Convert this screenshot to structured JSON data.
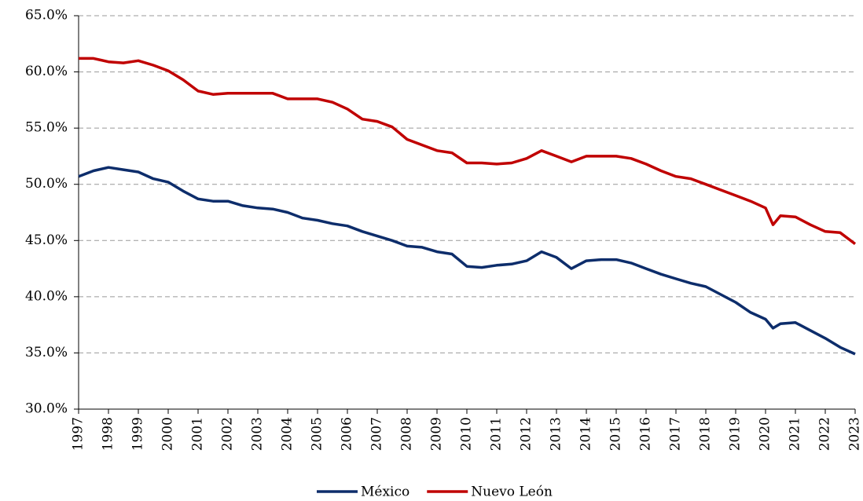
{
  "chart_data": {
    "type": "line",
    "x": [
      1997,
      1997.5,
      1998,
      1998.5,
      1999,
      1999.5,
      2000,
      2000.5,
      2001,
      2001.5,
      2002,
      2002.5,
      2003,
      2003.5,
      2004,
      2004.5,
      2005,
      2005.5,
      2006,
      2006.5,
      2007,
      2007.5,
      2008,
      2008.5,
      2009,
      2009.5,
      2010,
      2010.5,
      2011,
      2011.5,
      2012,
      2012.5,
      2013,
      2013.5,
      2014,
      2014.5,
      2015,
      2015.5,
      2016,
      2016.5,
      2017,
      2017.5,
      2018,
      2018.5,
      2019,
      2019.5,
      2020,
      2020.25,
      2020.5,
      2021,
      2021.5,
      2022,
      2022.5,
      2023
    ],
    "series": [
      {
        "name": "México",
        "color": "#0d2d6b",
        "values": [
          50.7,
          51.2,
          51.5,
          51.3,
          51.1,
          50.5,
          50.2,
          49.4,
          48.7,
          48.5,
          48.5,
          48.1,
          47.9,
          47.8,
          47.5,
          47.0,
          46.8,
          46.5,
          46.3,
          45.8,
          45.4,
          45.0,
          44.5,
          44.4,
          44.0,
          43.8,
          42.7,
          42.6,
          42.8,
          42.9,
          43.2,
          44.0,
          43.5,
          42.5,
          43.2,
          43.3,
          43.3,
          43.0,
          42.5,
          42.0,
          41.6,
          41.2,
          40.9,
          40.2,
          39.5,
          38.6,
          38.0,
          37.2,
          37.6,
          37.7,
          37.0,
          36.3,
          35.5,
          34.9
        ]
      },
      {
        "name": "Nuevo León",
        "color": "#c00000",
        "values": [
          61.2,
          61.2,
          60.9,
          60.8,
          61.0,
          60.6,
          60.1,
          59.3,
          58.3,
          58.0,
          58.1,
          58.1,
          58.1,
          58.1,
          57.6,
          57.6,
          57.6,
          57.3,
          56.7,
          55.8,
          55.6,
          55.1,
          54.0,
          53.5,
          53.0,
          52.8,
          51.9,
          51.9,
          51.8,
          51.9,
          52.3,
          53.0,
          52.5,
          52.0,
          52.5,
          52.5,
          52.5,
          52.3,
          51.8,
          51.2,
          50.7,
          50.5,
          50.0,
          49.5,
          49.0,
          48.5,
          47.9,
          46.4,
          47.2,
          47.1,
          46.4,
          45.8,
          45.7,
          44.7
        ]
      }
    ],
    "xlim": [
      1997,
      2023
    ],
    "xticks": [
      1997,
      1998,
      1999,
      2000,
      2001,
      2002,
      2003,
      2004,
      2005,
      2006,
      2007,
      2008,
      2009,
      2010,
      2011,
      2012,
      2013,
      2014,
      2015,
      2016,
      2017,
      2018,
      2019,
      2020,
      2021,
      2022,
      2023
    ],
    "ylim": [
      30,
      65
    ],
    "yticks": [
      {
        "value": 30,
        "label": "30.0%"
      },
      {
        "value": 35,
        "label": "35.0%"
      },
      {
        "value": 40,
        "label": "40.0%"
      },
      {
        "value": 45,
        "label": "45.0%"
      },
      {
        "value": 50,
        "label": "50.0%"
      },
      {
        "value": 55,
        "label": "55.0%"
      },
      {
        "value": 60,
        "label": "60.0%"
      },
      {
        "value": 65,
        "label": "65.0%"
      }
    ],
    "grid": true,
    "legend": "bottom"
  }
}
